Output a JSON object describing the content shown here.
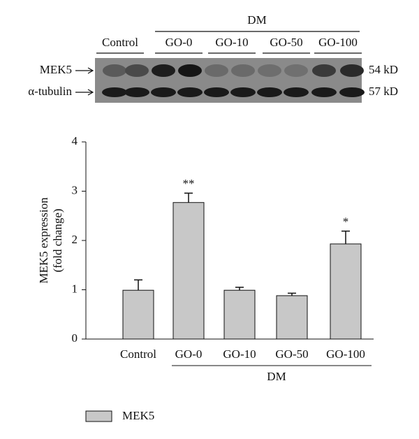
{
  "blot": {
    "group_label": "DM",
    "lanes": [
      "Control",
      "GO-0",
      "GO-10",
      "GO-50",
      "GO-100"
    ],
    "rows": [
      {
        "label": "MEK5",
        "size": "54 kD"
      },
      {
        "label": "α-tubulin",
        "size": "57 kD"
      }
    ]
  },
  "chart_data": {
    "type": "bar",
    "y_label": [
      "MEK5 expression",
      "(fold change)"
    ],
    "categories": [
      "Control",
      "GO-0",
      "GO-10",
      "GO-50",
      "GO-100"
    ],
    "group_label": "DM",
    "series": [
      {
        "name": "MEK5",
        "color": "#c8c8c8",
        "values": [
          0.99,
          2.77,
          0.99,
          0.88,
          1.93
        ],
        "errors": [
          0.21,
          0.19,
          0.06,
          0.05,
          0.26
        ]
      }
    ],
    "annotations": [
      {
        "text": "**",
        "x": "GO-0"
      },
      {
        "text": "*",
        "x": "GO-100"
      }
    ],
    "ylim": [
      0,
      4
    ],
    "yticks": [
      0,
      1,
      2,
      3,
      4
    ],
    "legend": "bottom-left"
  }
}
